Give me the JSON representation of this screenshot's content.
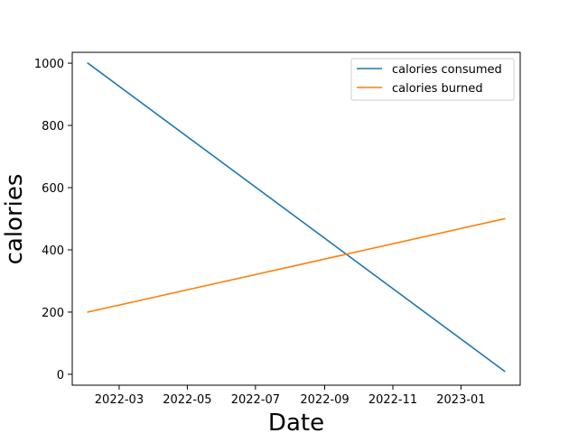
{
  "chart_data": {
    "type": "line",
    "title": "",
    "xlabel": "Date",
    "ylabel": "calories",
    "x_type": "date",
    "xlim": [
      "2022-01-18",
      "2023-02-23"
    ],
    "ylim": [
      -35,
      1035
    ],
    "x_ticks": [
      "2022-03-01",
      "2022-05-01",
      "2022-07-01",
      "2022-09-01",
      "2022-11-01",
      "2023-01-01"
    ],
    "x_tick_labels": [
      "2022-03",
      "2022-05",
      "2022-07",
      "2022-09",
      "2022-11",
      "2023-01"
    ],
    "y_ticks": [
      0,
      200,
      400,
      600,
      800,
      1000
    ],
    "y_tick_labels": [
      "0",
      "200",
      "400",
      "600",
      "800",
      "1000"
    ],
    "grid": false,
    "legend_position": "top-right",
    "series": [
      {
        "name": "calories consumed",
        "color": "#1f77b4",
        "x": [
          "2022-02-01",
          "2023-02-09"
        ],
        "y": [
          1000,
          10
        ]
      },
      {
        "name": "calories burned",
        "color": "#ff7f0e",
        "x": [
          "2022-02-01",
          "2023-02-09"
        ],
        "y": [
          200,
          500
        ]
      }
    ]
  }
}
